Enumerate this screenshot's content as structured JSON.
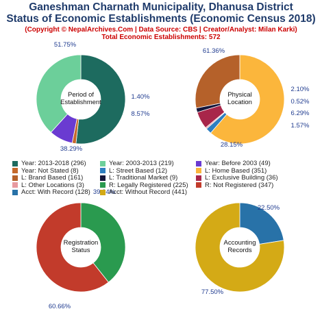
{
  "title": {
    "line1": "Ganeshman Charnath Municipality, Dhanusa District",
    "line2": "Status of Economic Establishments (Economic Census 2018)",
    "copyright": "(Copyright © NepalArchives.Com | Data Source: CBS | Creator/Analyst: Milan Karki)",
    "total": "Total Economic Establishments: 572"
  },
  "chart_data": [
    {
      "type": "pie",
      "center_label": [
        "Period of",
        "Establishment"
      ],
      "slices": [
        {
          "label": "Year: 2013-2018",
          "value": 296,
          "percent_label": "51.75%",
          "color": "#1d6b5f"
        },
        {
          "label": "Year: Not Stated",
          "value": 8,
          "percent_label": "1.40%",
          "color": "#c5692b"
        },
        {
          "label": "Year: Before 2003",
          "value": 49,
          "percent_label": "8.57%",
          "color": "#6a3bd1"
        },
        {
          "label": "Year: 2003-2013",
          "value": 219,
          "percent_label": "38.29%",
          "color": "#6ccf9a"
        }
      ]
    },
    {
      "type": "pie",
      "center_label": [
        "Physical",
        "Location"
      ],
      "slices": [
        {
          "label": "L: Home Based",
          "value": 351,
          "percent_label": "61.36%",
          "color": "#fbb63c"
        },
        {
          "label": "L: Street Based",
          "value": 12,
          "percent_label": "2.10%",
          "color": "#2e7fc0"
        },
        {
          "label": "L: Other Locations",
          "value": 3,
          "percent_label": "0.52%",
          "color": "#e89aa0"
        },
        {
          "label": "L: Exclusive Building",
          "value": 36,
          "percent_label": "6.29%",
          "color": "#a8264a"
        },
        {
          "label": "L: Traditional Market",
          "value": 9,
          "percent_label": "1.57%",
          "color": "#15163a"
        },
        {
          "label": "L: Brand Based",
          "value": 161,
          "percent_label": "28.15%",
          "color": "#b5612a"
        }
      ]
    },
    {
      "type": "pie",
      "center_label": [
        "Registration",
        "Status"
      ],
      "slices": [
        {
          "label": "R: Legally Registered",
          "value": 225,
          "percent_label": "39.34%",
          "color": "#2a9a4f"
        },
        {
          "label": "R: Not Registered",
          "value": 347,
          "percent_label": "60.66%",
          "color": "#c23b2b"
        }
      ]
    },
    {
      "type": "pie",
      "center_label": [
        "Accounting",
        "Records"
      ],
      "slices": [
        {
          "label": "Acct: With Record",
          "value": 128,
          "percent_label": "22.50%",
          "color": "#2872a8"
        },
        {
          "label": "Acct: Without Record",
          "value": 441,
          "percent_label": "77.50%",
          "color": "#d4aa16"
        }
      ]
    }
  ],
  "legend": [
    {
      "text": "Year: 2013-2018 (296)",
      "color": "#1d6b5f"
    },
    {
      "text": "Year: 2003-2013 (219)",
      "color": "#6ccf9a"
    },
    {
      "text": "Year: Before 2003 (49)",
      "color": "#6a3bd1"
    },
    {
      "text": "Year: Not Stated (8)",
      "color": "#c5692b"
    },
    {
      "text": "L: Street Based (12)",
      "color": "#2e7fc0"
    },
    {
      "text": "L: Home Based (351)",
      "color": "#fbb63c"
    },
    {
      "text": "L: Brand Based (161)",
      "color": "#b5612a"
    },
    {
      "text": "L: Traditional Market (9)",
      "color": "#15163a"
    },
    {
      "text": "L: Exclusive Building (36)",
      "color": "#a8264a"
    },
    {
      "text": "L: Other Locations (3)",
      "color": "#e89aa0"
    },
    {
      "text": "R: Legally Registered (225)",
      "color": "#2a9a4f"
    },
    {
      "text": "R: Not Registered (347)",
      "color": "#c23b2b"
    },
    {
      "text": "Acct: With Record (128)",
      "color": "#2872a8"
    },
    {
      "text": "Acct: Without Record (441)",
      "color": "#d4aa16"
    }
  ]
}
